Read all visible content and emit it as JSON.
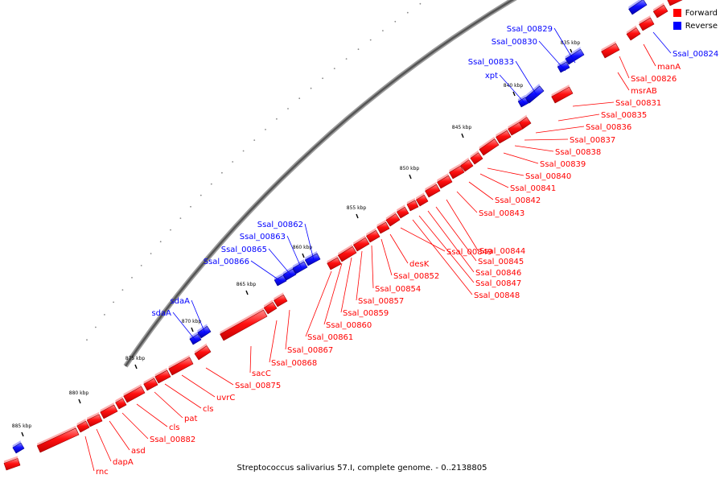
{
  "legend": {
    "forward_label": "Forward",
    "reverse_label": "Reverse",
    "forward_color": "#ff0000",
    "reverse_color": "#0000ff"
  },
  "caption": "Streptococcus salivarius 57.I, complete genome. - 0..2138805",
  "ticks": [
    {
      "label": "835 kbp"
    },
    {
      "label": "840 kbp"
    },
    {
      "label": "845 kbp"
    },
    {
      "label": "850 kbp"
    },
    {
      "label": "855 kbp"
    },
    {
      "label": "860 kbp"
    },
    {
      "label": "865 kbp"
    },
    {
      "label": "870 kbp"
    },
    {
      "label": "875 kbp"
    },
    {
      "label": "880 kbp"
    },
    {
      "label": "885 kbp"
    }
  ],
  "forward_labels": [
    "manA",
    "Ssal_00826",
    "msrAB",
    "Ssal_00831",
    "Ssal_00835",
    "Ssal_00836",
    "Ssal_00837",
    "Ssal_00838",
    "Ssal_00839",
    "Ssal_00840",
    "Ssal_00841",
    "Ssal_00842",
    "Ssal_00843",
    "Ssal_00844",
    "Ssal_00845",
    "Ssal_00846",
    "Ssal_00847",
    "Ssal_00848",
    "Ssal_00849",
    "desK",
    "Ssal_00852",
    "Ssal_00854",
    "Ssal_00857",
    "Ssal_00859",
    "Ssal_00860",
    "Ssal_00861",
    "Ssal_00867",
    "Ssal_00868",
    "sacC",
    "Ssal_00875",
    "uvrC",
    "cls",
    "pat",
    "cls",
    "Ssal_00882",
    "asd",
    "dapA",
    "rnc"
  ],
  "reverse_labels": [
    "Ssal_00824",
    "Ssal_00829",
    "Ssal_00830",
    "Ssal_00833",
    "xpt",
    "Ssal_00862",
    "Ssal_00863",
    "Ssal_00865",
    "Ssal_00866",
    "sdaA",
    "sdaA"
  ]
}
